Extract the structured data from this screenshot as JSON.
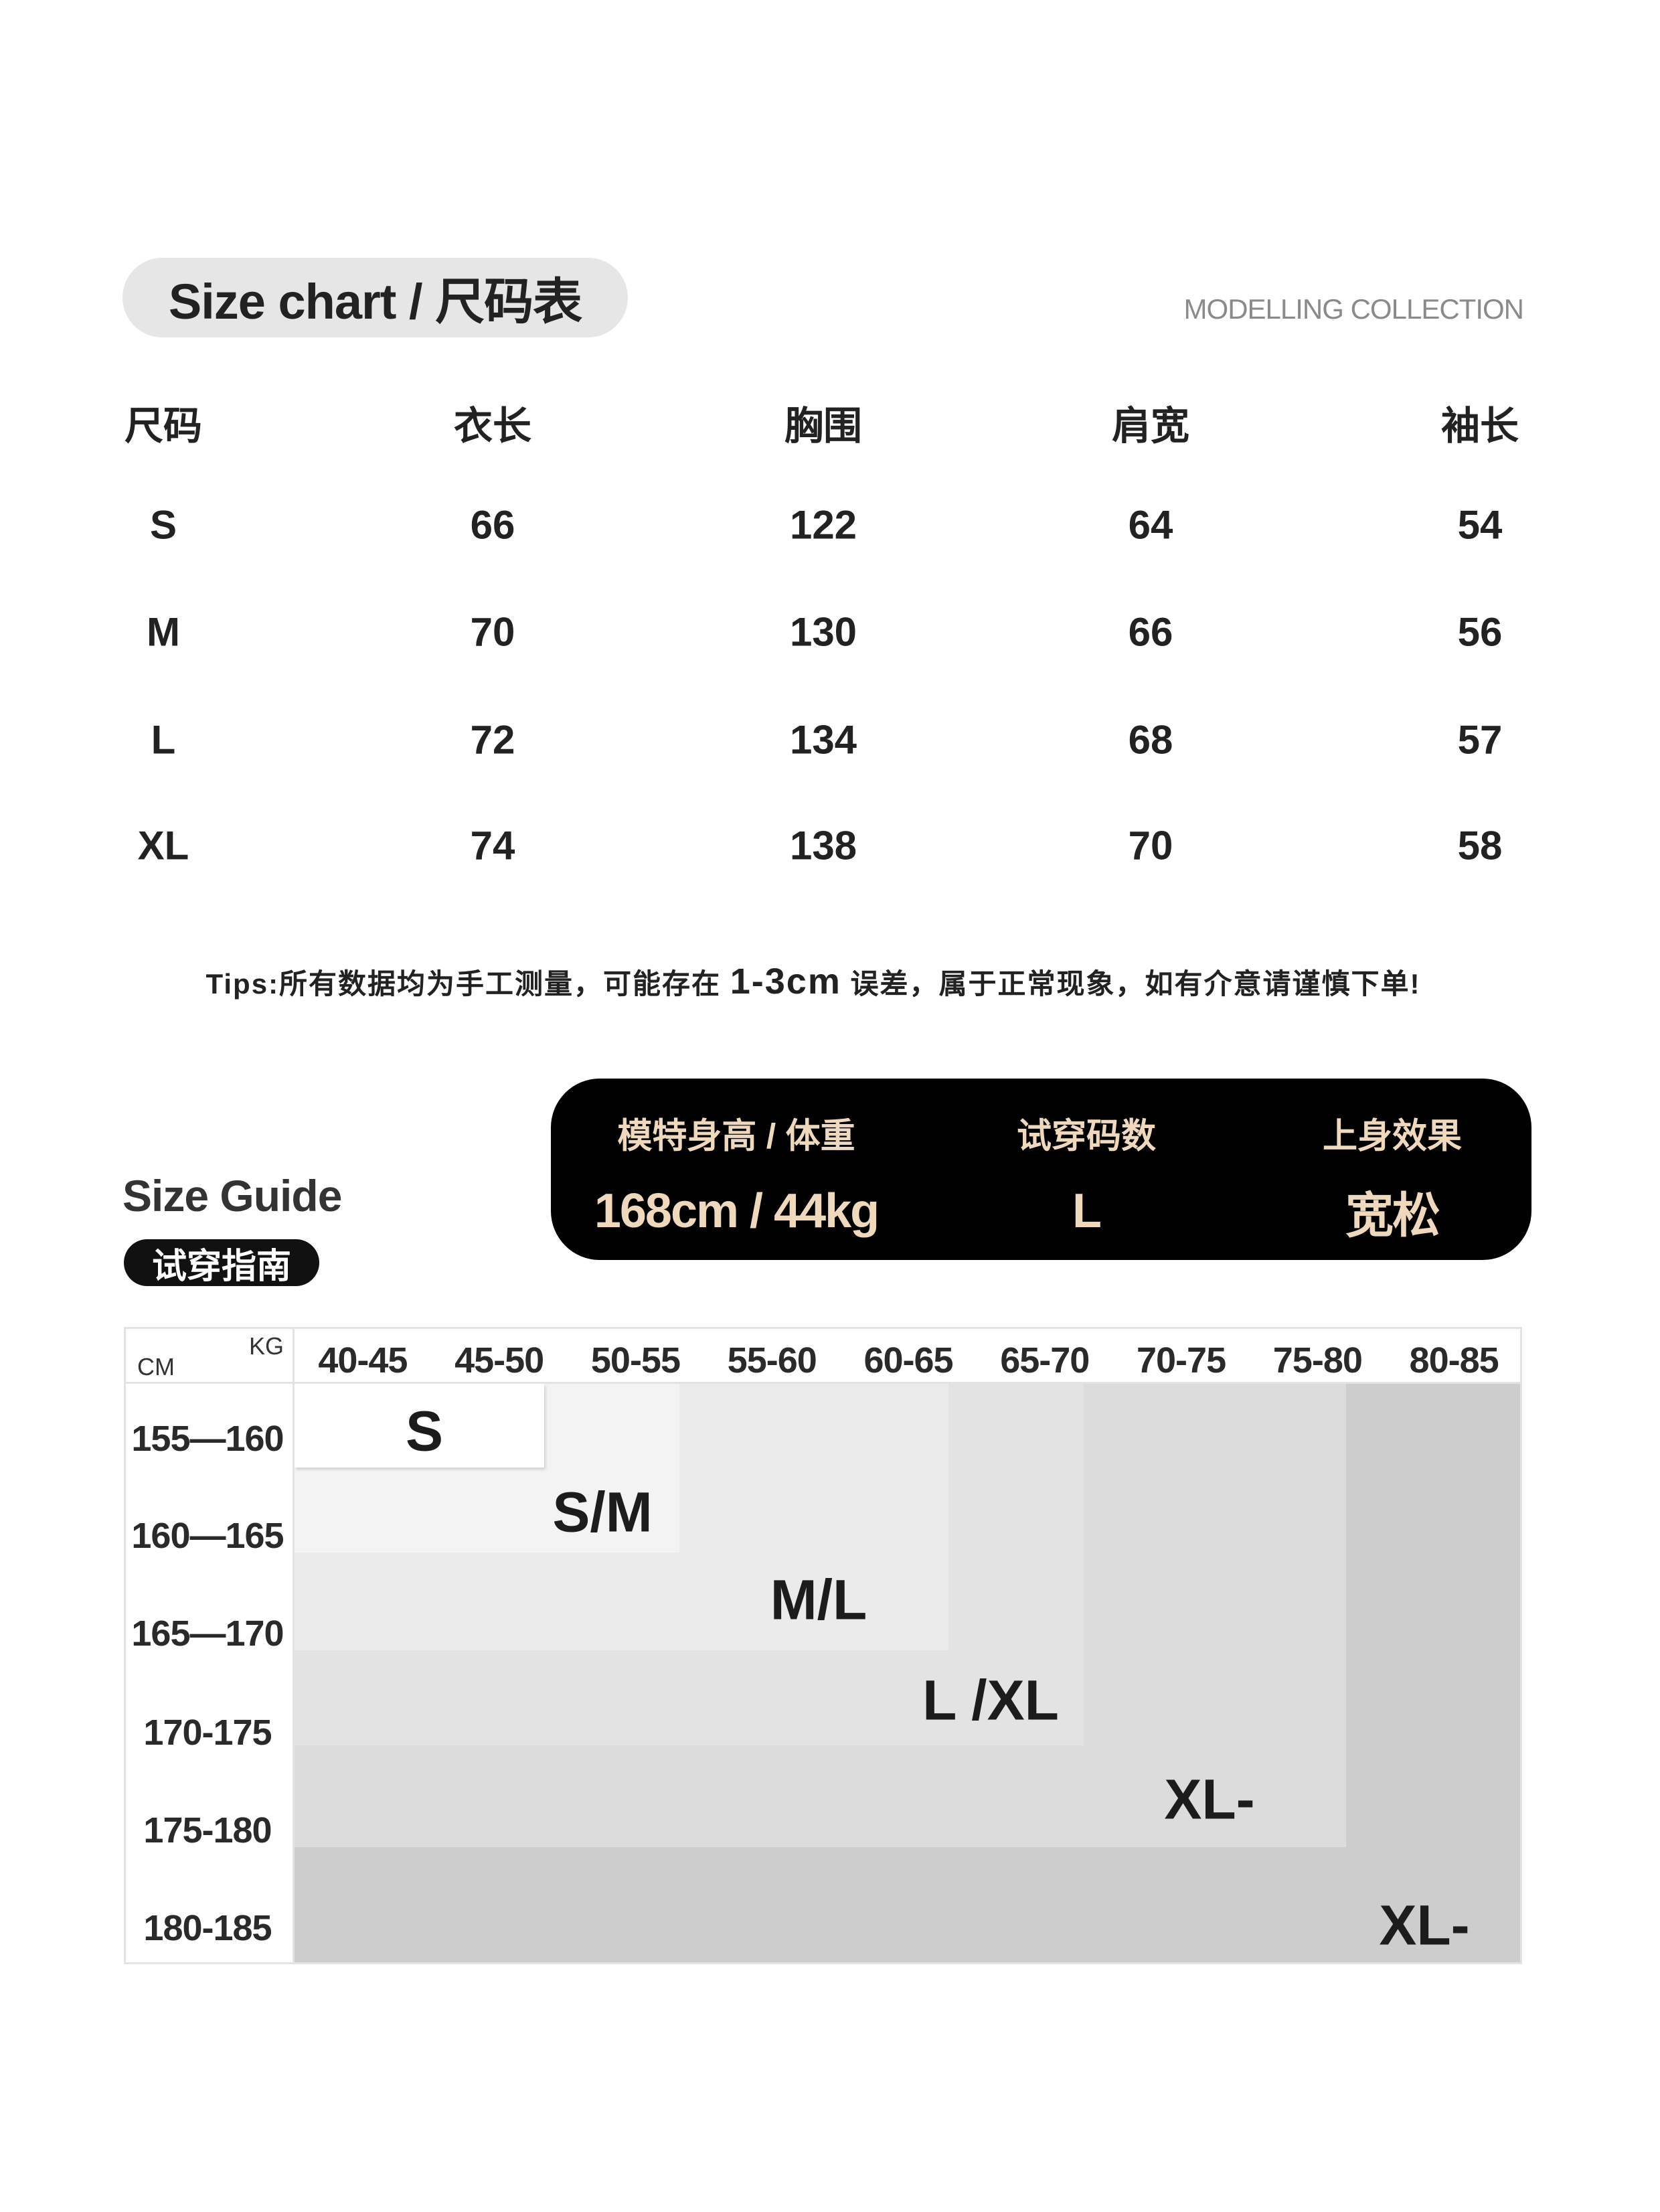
{
  "header": {
    "title": "Size chart / 尺码表",
    "collection": "MODELLING COLLECTION"
  },
  "size_table": {
    "columns": [
      "尺码",
      "衣长",
      "胸围",
      "肩宽",
      "袖长"
    ],
    "rows": [
      [
        "S",
        "66",
        "122",
        "64",
        "54"
      ],
      [
        "M",
        "70",
        "130",
        "66",
        "56"
      ],
      [
        "L",
        "72",
        "134",
        "68",
        "57"
      ],
      [
        "XL",
        "74",
        "138",
        "70",
        "58"
      ]
    ]
  },
  "tips": {
    "prefix": "Tips:所有数据均为手工测量，可能存在",
    "highlight": "1-3cm",
    "suffix": "误差，属于正常现象，如有介意请谨慎下单!"
  },
  "guide": {
    "title": "Size Guide",
    "badge": "试穿指南"
  },
  "model_info": {
    "labels": [
      "模特身高 / 体重",
      "试穿码数",
      "上身效果"
    ],
    "values": [
      "168cm / 44kg",
      "L",
      "宽松"
    ],
    "text_color": "#efd8bb",
    "background": "#000000"
  },
  "chart_data": {
    "type": "table",
    "x_unit": "KG",
    "y_unit": "CM",
    "weight_ranges": [
      "40-45",
      "45-50",
      "50-55",
      "55-60",
      "60-65",
      "65-70",
      "70-75",
      "75-80",
      "80-85"
    ],
    "height_ranges": [
      "155—160",
      "160—165",
      "165—170",
      "170-175",
      "175-180",
      "180-185"
    ],
    "size_zones": [
      {
        "size": "S",
        "color": "#ffffff"
      },
      {
        "size": "S/M",
        "color": "#f3f3f3"
      },
      {
        "size": "M/L",
        "color": "#ebebeb"
      },
      {
        "size": "L /XL",
        "color": "#e3e3e3"
      },
      {
        "size": "XL-",
        "color": "#dcdcdc"
      },
      {
        "size": "XL-",
        "color": "#cdcdcd"
      }
    ]
  }
}
